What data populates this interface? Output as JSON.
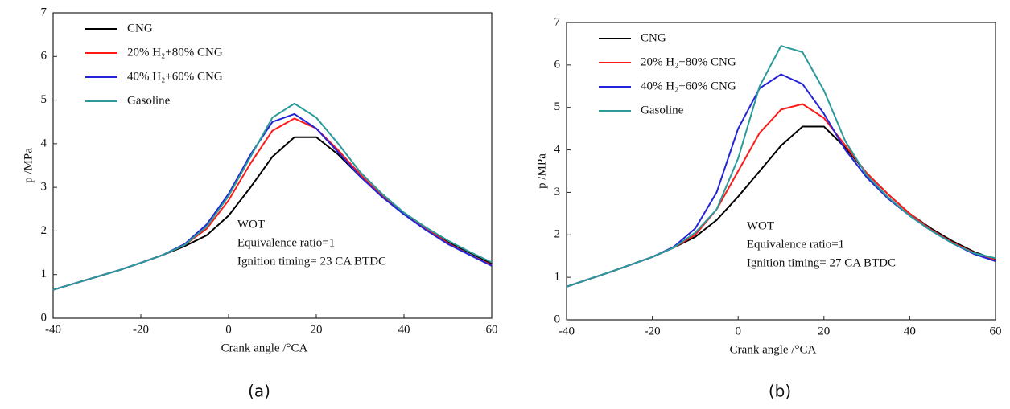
{
  "chart_data": [
    {
      "type": "line",
      "panel_label": "(a)",
      "x_label": "Crank angle /°CA",
      "y_label": "p /MPa",
      "annotations": [
        "WOT",
        "Equivalence ratio=1",
        "Ignition timing= 23 CA BTDC"
      ],
      "x": [
        -40,
        -35,
        -30,
        -25,
        -20,
        -15,
        -10,
        -5,
        0,
        5,
        10,
        15,
        20,
        25,
        30,
        35,
        40,
        45,
        50,
        55,
        60
      ],
      "xlim": [
        -40,
        60
      ],
      "xticks": [
        -40,
        -20,
        0,
        20,
        40,
        60
      ],
      "ylim": [
        0,
        7
      ],
      "yticks": [
        0,
        1,
        2,
        3,
        4,
        5,
        6,
        7
      ],
      "series": [
        {
          "name": "CNG",
          "color": "#000000",
          "values": [
            0.65,
            0.8,
            0.95,
            1.1,
            1.27,
            1.45,
            1.65,
            1.9,
            2.35,
            3.0,
            3.7,
            4.15,
            4.15,
            3.75,
            3.25,
            2.8,
            2.4,
            2.05,
            1.75,
            1.5,
            1.25
          ]
        },
        {
          "name": "20% H₂+80% CNG",
          "color": "#ff1a1a",
          "values": [
            0.65,
            0.8,
            0.95,
            1.1,
            1.27,
            1.45,
            1.68,
            2.05,
            2.7,
            3.55,
            4.3,
            4.58,
            4.35,
            3.85,
            3.3,
            2.8,
            2.4,
            2.05,
            1.72,
            1.45,
            1.22
          ]
        },
        {
          "name": "40% H₂+60% CNG",
          "color": "#2323d8",
          "values": [
            0.65,
            0.8,
            0.95,
            1.1,
            1.27,
            1.45,
            1.7,
            2.15,
            2.85,
            3.75,
            4.5,
            4.68,
            4.35,
            3.8,
            3.25,
            2.78,
            2.38,
            2.02,
            1.7,
            1.45,
            1.2
          ]
        },
        {
          "name": "Gasoline",
          "color": "#2a9a9a",
          "values": [
            0.65,
            0.8,
            0.95,
            1.1,
            1.27,
            1.45,
            1.68,
            2.1,
            2.8,
            3.7,
            4.6,
            4.92,
            4.6,
            4.0,
            3.35,
            2.85,
            2.42,
            2.08,
            1.78,
            1.52,
            1.28
          ]
        }
      ]
    },
    {
      "type": "line",
      "panel_label": "(b)",
      "x_label": "Crank angle /°CA",
      "y_label": "p /MPa",
      "annotations": [
        "WOT",
        "Equivalence ratio=1",
        "Ignition timing= 27 CA BTDC"
      ],
      "x": [
        -40,
        -35,
        -30,
        -25,
        -20,
        -15,
        -10,
        -5,
        0,
        5,
        10,
        15,
        20,
        25,
        30,
        35,
        40,
        45,
        50,
        55,
        60
      ],
      "xlim": [
        -40,
        60
      ],
      "xticks": [
        -40,
        -20,
        0,
        20,
        40,
        60
      ],
      "ylim": [
        0,
        7
      ],
      "yticks": [
        0,
        1,
        2,
        3,
        4,
        5,
        6,
        7
      ],
      "series": [
        {
          "name": "CNG",
          "color": "#000000",
          "values": [
            0.78,
            0.95,
            1.12,
            1.3,
            1.48,
            1.7,
            1.95,
            2.35,
            2.9,
            3.5,
            4.1,
            4.55,
            4.55,
            4.05,
            3.45,
            2.95,
            2.5,
            2.15,
            1.85,
            1.6,
            1.42
          ]
        },
        {
          "name": "20% H₂+80% CNG",
          "color": "#ff1a1a",
          "values": [
            0.78,
            0.95,
            1.12,
            1.3,
            1.48,
            1.7,
            2.0,
            2.6,
            3.5,
            4.4,
            4.95,
            5.08,
            4.75,
            4.1,
            3.45,
            2.95,
            2.5,
            2.12,
            1.82,
            1.58,
            1.4
          ]
        },
        {
          "name": "40% H₂+60% CNG",
          "color": "#2323d8",
          "values": [
            0.78,
            0.95,
            1.12,
            1.3,
            1.48,
            1.72,
            2.15,
            3.0,
            4.5,
            5.45,
            5.78,
            5.55,
            4.85,
            4.0,
            3.35,
            2.85,
            2.45,
            2.1,
            1.8,
            1.55,
            1.38
          ]
        },
        {
          "name": "Gasoline",
          "color": "#2a9a9a",
          "values": [
            0.78,
            0.95,
            1.12,
            1.3,
            1.48,
            1.7,
            2.05,
            2.6,
            3.8,
            5.5,
            6.45,
            6.3,
            5.4,
            4.2,
            3.4,
            2.88,
            2.45,
            2.1,
            1.8,
            1.57,
            1.45
          ]
        }
      ]
    }
  ]
}
